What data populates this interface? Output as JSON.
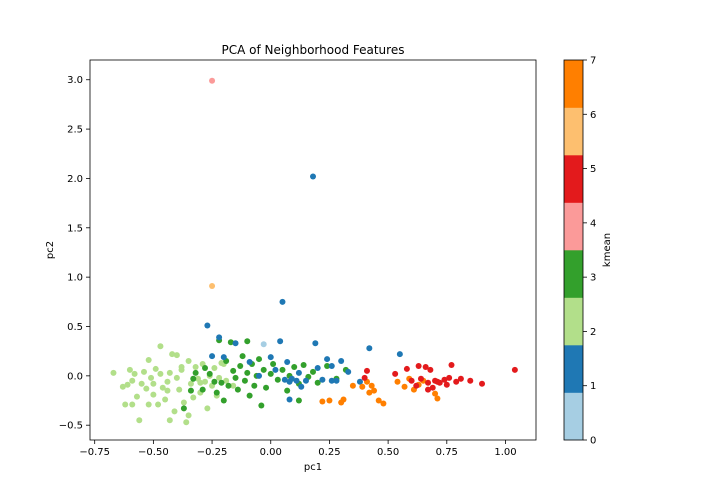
{
  "chart_data": {
    "type": "scatter",
    "title": "PCA of Neighborhood Features",
    "xlabel": "pc1",
    "ylabel": "pc2",
    "xlim": [
      -0.77,
      1.13
    ],
    "ylim": [
      -0.65,
      3.2
    ],
    "x_ticks": [
      "−0.75",
      "−0.50",
      "−0.25",
      "0.00",
      "0.25",
      "0.50",
      "0.75",
      "1.00"
    ],
    "x_tick_values": [
      -0.75,
      -0.5,
      -0.25,
      0.0,
      0.25,
      0.5,
      0.75,
      1.0
    ],
    "y_ticks": [
      "−0.5",
      "0.0",
      "0.5",
      "1.0",
      "1.5",
      "2.0",
      "2.5",
      "3.0"
    ],
    "y_tick_values": [
      -0.5,
      0.0,
      0.5,
      1.0,
      1.5,
      2.0,
      2.5,
      3.0
    ],
    "grid": false,
    "colorbar": {
      "label": "kmean",
      "range": [
        0,
        7
      ],
      "ticks": [
        "0",
        "1",
        "2",
        "3",
        "4",
        "5",
        "6",
        "7"
      ],
      "colors": [
        "#a6cee3",
        "#1f78b4",
        "#b2df8a",
        "#33a02c",
        "#fb9a99",
        "#e31a1c",
        "#fdbf6f",
        "#ff7f00"
      ]
    },
    "points": [
      {
        "x": -0.67,
        "y": 0.03,
        "k": 2
      },
      {
        "x": -0.63,
        "y": -0.11,
        "k": 2
      },
      {
        "x": -0.61,
        "y": -0.09,
        "k": 2
      },
      {
        "x": -0.6,
        "y": 0.06,
        "k": 2
      },
      {
        "x": -0.59,
        "y": -0.05,
        "k": 2
      },
      {
        "x": -0.58,
        "y": 0.02,
        "k": 2
      },
      {
        "x": -0.57,
        "y": -0.21,
        "k": 2
      },
      {
        "x": -0.56,
        "y": -0.45,
        "k": 2
      },
      {
        "x": -0.55,
        "y": -0.08,
        "k": 2
      },
      {
        "x": -0.54,
        "y": 0.04,
        "k": 2
      },
      {
        "x": -0.53,
        "y": -0.13,
        "k": 2
      },
      {
        "x": -0.52,
        "y": 0.16,
        "k": 2
      },
      {
        "x": -0.51,
        "y": -0.02,
        "k": 2
      },
      {
        "x": -0.5,
        "y": -0.19,
        "k": 2
      },
      {
        "x": -0.49,
        "y": 0.07,
        "k": 2
      },
      {
        "x": -0.48,
        "y": -0.29,
        "k": 2
      },
      {
        "x": -0.47,
        "y": 0.3,
        "k": 2
      },
      {
        "x": -0.46,
        "y": -0.12,
        "k": 2
      },
      {
        "x": -0.45,
        "y": -0.24,
        "k": 2
      },
      {
        "x": -0.44,
        "y": -0.06,
        "k": 2
      },
      {
        "x": -0.43,
        "y": 0.03,
        "k": 2
      },
      {
        "x": -0.43,
        "y": -0.45,
        "k": 2
      },
      {
        "x": -0.42,
        "y": 0.22,
        "k": 2
      },
      {
        "x": -0.41,
        "y": -0.36,
        "k": 2
      },
      {
        "x": -0.4,
        "y": -0.02,
        "k": 2
      },
      {
        "x": -0.39,
        "y": -0.14,
        "k": 2
      },
      {
        "x": -0.38,
        "y": 0.06,
        "k": 2
      },
      {
        "x": -0.37,
        "y": -0.27,
        "k": 2
      },
      {
        "x": -0.36,
        "y": -0.47,
        "k": 2
      },
      {
        "x": -0.35,
        "y": 0.15,
        "k": 2
      },
      {
        "x": -0.34,
        "y": -0.08,
        "k": 2
      },
      {
        "x": -0.33,
        "y": -0.22,
        "k": 2
      },
      {
        "x": -0.32,
        "y": 0.09,
        "k": 2
      },
      {
        "x": -0.31,
        "y": -0.03,
        "k": 2
      },
      {
        "x": -0.3,
        "y": -0.17,
        "k": 2
      },
      {
        "x": -0.29,
        "y": 0.12,
        "k": 2
      },
      {
        "x": -0.28,
        "y": -0.06,
        "k": 2
      },
      {
        "x": -0.27,
        "y": -0.33,
        "k": 2
      },
      {
        "x": -0.26,
        "y": 0.0,
        "k": 2
      },
      {
        "x": -0.25,
        "y": -0.1,
        "k": 2
      },
      {
        "x": -0.24,
        "y": 0.08,
        "k": 2
      },
      {
        "x": -0.23,
        "y": -0.2,
        "k": 2
      },
      {
        "x": -0.22,
        "y": -0.02,
        "k": 2
      },
      {
        "x": -0.21,
        "y": 0.13,
        "k": 2
      },
      {
        "x": -0.19,
        "y": -0.05,
        "k": 2
      },
      {
        "x": -0.52,
        "y": -0.29,
        "k": 2
      },
      {
        "x": -0.59,
        "y": -0.29,
        "k": 2
      },
      {
        "x": -0.44,
        "y": -0.15,
        "k": 2
      },
      {
        "x": -0.4,
        "y": 0.21,
        "k": 2
      },
      {
        "x": -0.35,
        "y": -0.4,
        "k": 2
      },
      {
        "x": -0.47,
        "y": 0.02,
        "k": 2
      },
      {
        "x": -0.38,
        "y": 0.09,
        "k": 2
      },
      {
        "x": -0.3,
        "y": -0.07,
        "k": 2
      },
      {
        "x": -0.5,
        "y": -0.08,
        "k": 2
      },
      {
        "x": -0.62,
        "y": -0.29,
        "k": 2
      },
      {
        "x": -0.2,
        "y": 0.12,
        "k": 2
      },
      {
        "x": -0.16,
        "y": -0.1,
        "k": 2
      },
      {
        "x": -0.37,
        "y": -0.33,
        "k": 3
      },
      {
        "x": -0.33,
        "y": -0.03,
        "k": 3
      },
      {
        "x": -0.32,
        "y": 0.03,
        "k": 3
      },
      {
        "x": -0.29,
        "y": -0.14,
        "k": 3
      },
      {
        "x": -0.26,
        "y": 0.02,
        "k": 3
      },
      {
        "x": -0.24,
        "y": -0.06,
        "k": 3
      },
      {
        "x": -0.23,
        "y": -0.17,
        "k": 3
      },
      {
        "x": -0.22,
        "y": 0.36,
        "k": 3
      },
      {
        "x": -0.21,
        "y": -0.07,
        "k": 3
      },
      {
        "x": -0.2,
        "y": -0.25,
        "k": 3
      },
      {
        "x": -0.19,
        "y": 0.15,
        "k": 3
      },
      {
        "x": -0.18,
        "y": -0.1,
        "k": 3
      },
      {
        "x": -0.17,
        "y": 0.34,
        "k": 3
      },
      {
        "x": -0.16,
        "y": 0.05,
        "k": 3
      },
      {
        "x": -0.15,
        "y": -0.02,
        "k": 3
      },
      {
        "x": -0.14,
        "y": -0.14,
        "k": 3
      },
      {
        "x": -0.13,
        "y": 0.1,
        "k": 3
      },
      {
        "x": -0.12,
        "y": 0.2,
        "k": 3
      },
      {
        "x": -0.11,
        "y": -0.05,
        "k": 3
      },
      {
        "x": -0.1,
        "y": 0.03,
        "k": 3
      },
      {
        "x": -0.09,
        "y": -0.2,
        "k": 3
      },
      {
        "x": -0.08,
        "y": 0.12,
        "k": 3
      },
      {
        "x": -0.07,
        "y": -0.1,
        "k": 3
      },
      {
        "x": -0.06,
        "y": 0.0,
        "k": 3
      },
      {
        "x": -0.05,
        "y": 0.17,
        "k": 3
      },
      {
        "x": -0.04,
        "y": -0.3,
        "k": 3
      },
      {
        "x": -0.03,
        "y": 0.06,
        "k": 3
      },
      {
        "x": -0.02,
        "y": -0.12,
        "k": 3
      },
      {
        "x": 0.0,
        "y": 0.02,
        "k": 3
      },
      {
        "x": 0.01,
        "y": 0.12,
        "k": 3
      },
      {
        "x": 0.03,
        "y": -0.04,
        "k": 3
      },
      {
        "x": 0.05,
        "y": 0.06,
        "k": 3
      },
      {
        "x": 0.07,
        "y": -0.15,
        "k": 3
      },
      {
        "x": 0.08,
        "y": 0.0,
        "k": 3
      },
      {
        "x": 0.1,
        "y": 0.09,
        "k": 3
      },
      {
        "x": 0.12,
        "y": -0.08,
        "k": 3
      },
      {
        "x": 0.14,
        "y": 0.11,
        "k": 3
      },
      {
        "x": 0.16,
        "y": -0.01,
        "k": 3
      },
      {
        "x": 0.18,
        "y": 0.04,
        "k": 3
      },
      {
        "x": 0.2,
        "y": -0.07,
        "k": 3
      },
      {
        "x": 0.24,
        "y": 0.1,
        "k": 3
      },
      {
        "x": 0.28,
        "y": -0.03,
        "k": 3
      },
      {
        "x": 0.32,
        "y": 0.06,
        "k": 3
      },
      {
        "x": -0.28,
        "y": 0.08,
        "k": 3
      },
      {
        "x": -0.34,
        "y": -0.15,
        "k": 3
      },
      {
        "x": 0.12,
        "y": -0.25,
        "k": 3
      },
      {
        "x": -0.1,
        "y": 0.35,
        "k": 3
      },
      {
        "x": -0.27,
        "y": 0.51,
        "k": 1
      },
      {
        "x": -0.25,
        "y": 0.2,
        "k": 1
      },
      {
        "x": -0.22,
        "y": 0.39,
        "k": 1
      },
      {
        "x": -0.2,
        "y": 0.19,
        "k": 1
      },
      {
        "x": -0.15,
        "y": 0.33,
        "k": 1
      },
      {
        "x": -0.09,
        "y": 0.14,
        "k": 1
      },
      {
        "x": -0.05,
        "y": 0.0,
        "k": 1
      },
      {
        "x": 0.0,
        "y": 0.19,
        "k": 1
      },
      {
        "x": 0.02,
        "y": 0.06,
        "k": 1
      },
      {
        "x": 0.04,
        "y": 0.35,
        "k": 1
      },
      {
        "x": 0.05,
        "y": 0.75,
        "k": 1
      },
      {
        "x": 0.06,
        "y": -0.04,
        "k": 1
      },
      {
        "x": 0.07,
        "y": 0.14,
        "k": 1
      },
      {
        "x": 0.08,
        "y": -0.06,
        "k": 1
      },
      {
        "x": 0.09,
        "y": -0.03,
        "k": 1
      },
      {
        "x": 0.11,
        "y": -0.05,
        "k": 1
      },
      {
        "x": 0.12,
        "y": 0.03,
        "k": 1
      },
      {
        "x": 0.13,
        "y": -0.11,
        "k": 1
      },
      {
        "x": 0.15,
        "y": -0.05,
        "k": 1
      },
      {
        "x": 0.18,
        "y": 2.02,
        "k": 1
      },
      {
        "x": 0.19,
        "y": 0.33,
        "k": 1
      },
      {
        "x": 0.2,
        "y": 0.08,
        "k": 1
      },
      {
        "x": 0.22,
        "y": -0.04,
        "k": 1
      },
      {
        "x": 0.24,
        "y": 0.17,
        "k": 1
      },
      {
        "x": 0.26,
        "y": 0.1,
        "k": 1
      },
      {
        "x": 0.28,
        "y": -0.05,
        "k": 1
      },
      {
        "x": 0.3,
        "y": 0.15,
        "k": 1
      },
      {
        "x": 0.33,
        "y": 0.04,
        "k": 1
      },
      {
        "x": 0.38,
        "y": -0.06,
        "k": 1
      },
      {
        "x": 0.42,
        "y": 0.28,
        "k": 1
      },
      {
        "x": 0.55,
        "y": 0.22,
        "k": 1
      },
      {
        "x": 0.08,
        "y": -0.24,
        "k": 1
      },
      {
        "x": 0.26,
        "y": -0.05,
        "k": 1
      },
      {
        "x": -0.03,
        "y": 0.32,
        "k": 0
      },
      {
        "x": -0.25,
        "y": 2.99,
        "k": 4
      },
      {
        "x": -0.25,
        "y": 0.91,
        "k": 6
      },
      {
        "x": 0.22,
        "y": -0.26,
        "k": 7
      },
      {
        "x": 0.25,
        "y": -0.25,
        "k": 7
      },
      {
        "x": 0.3,
        "y": -0.27,
        "k": 7
      },
      {
        "x": 0.31,
        "y": -0.24,
        "k": 7
      },
      {
        "x": 0.35,
        "y": -0.1,
        "k": 7
      },
      {
        "x": 0.39,
        "y": -0.11,
        "k": 7
      },
      {
        "x": 0.41,
        "y": -0.06,
        "k": 7
      },
      {
        "x": 0.42,
        "y": -0.17,
        "k": 7
      },
      {
        "x": 0.43,
        "y": -0.1,
        "k": 7
      },
      {
        "x": 0.44,
        "y": -0.15,
        "k": 7
      },
      {
        "x": 0.46,
        "y": -0.25,
        "k": 7
      },
      {
        "x": 0.48,
        "y": -0.28,
        "k": 7
      },
      {
        "x": 0.54,
        "y": -0.06,
        "k": 7
      },
      {
        "x": 0.57,
        "y": -0.11,
        "k": 7
      },
      {
        "x": 0.59,
        "y": -0.03,
        "k": 7
      },
      {
        "x": 0.61,
        "y": -0.14,
        "k": 7
      },
      {
        "x": 0.63,
        "y": -0.09,
        "k": 7
      },
      {
        "x": 0.65,
        "y": -0.05,
        "k": 7
      },
      {
        "x": 0.7,
        "y": -0.18,
        "k": 7
      },
      {
        "x": 0.71,
        "y": -0.23,
        "k": 7
      },
      {
        "x": 0.4,
        "y": -0.02,
        "k": 5
      },
      {
        "x": 0.41,
        "y": 0.05,
        "k": 5
      },
      {
        "x": 0.53,
        "y": 0.02,
        "k": 5
      },
      {
        "x": 0.58,
        "y": 0.07,
        "k": 5
      },
      {
        "x": 0.6,
        "y": -0.05,
        "k": 5
      },
      {
        "x": 0.62,
        "y": -0.1,
        "k": 5
      },
      {
        "x": 0.63,
        "y": 0.1,
        "k": 5
      },
      {
        "x": 0.64,
        "y": -0.03,
        "k": 5
      },
      {
        "x": 0.66,
        "y": 0.09,
        "k": 5
      },
      {
        "x": 0.67,
        "y": -0.07,
        "k": 5
      },
      {
        "x": 0.68,
        "y": 0.06,
        "k": 5
      },
      {
        "x": 0.69,
        "y": -0.12,
        "k": 5
      },
      {
        "x": 0.7,
        "y": -0.05,
        "k": 5
      },
      {
        "x": 0.71,
        "y": -0.06,
        "k": 5
      },
      {
        "x": 0.72,
        "y": -0.07,
        "k": 5
      },
      {
        "x": 0.74,
        "y": -0.04,
        "k": 5
      },
      {
        "x": 0.75,
        "y": -0.09,
        "k": 5
      },
      {
        "x": 0.76,
        "y": -0.02,
        "k": 5
      },
      {
        "x": 0.77,
        "y": 0.11,
        "k": 5
      },
      {
        "x": 0.79,
        "y": -0.06,
        "k": 5
      },
      {
        "x": 0.81,
        "y": -0.03,
        "k": 5
      },
      {
        "x": 0.85,
        "y": -0.05,
        "k": 5
      },
      {
        "x": 0.9,
        "y": -0.08,
        "k": 5
      },
      {
        "x": 1.04,
        "y": 0.06,
        "k": 5
      },
      {
        "x": 0.67,
        "y": -0.14,
        "k": 5
      }
    ]
  }
}
